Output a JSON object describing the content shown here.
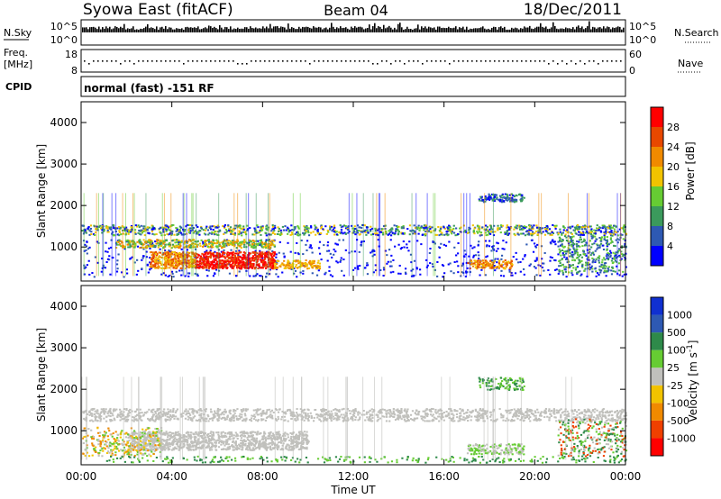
{
  "header": {
    "station": "Syowa East (fitACF)",
    "beam": "Beam 04",
    "date": "18/Dec/2011"
  },
  "top_panel": {
    "left_label": "N.Sky",
    "left_ticks": [
      "10^5",
      "10^0"
    ],
    "right_label": "N.Search",
    "right_ticks": [
      "10^5",
      "10^0"
    ]
  },
  "freq_panel": {
    "left_label_1": "Freq.",
    "left_label_2": "[MHz]",
    "left_ticks": [
      "18",
      "8"
    ],
    "right_label": "Nave",
    "right_ticks": [
      "60",
      "0"
    ]
  },
  "cpid_panel": {
    "label": "CPID",
    "mode_text": "normal (fast) -151 RF"
  },
  "colors": {
    "power_scale": [
      "#0000ff",
      "#2e59b3",
      "#3b9a5c",
      "#66cc33",
      "#f2c300",
      "#f08a00",
      "#e84800",
      "#ff0000"
    ],
    "velocity_scale": [
      "#ff0000",
      "#f04000",
      "#f08a00",
      "#f2c300",
      "#c0c0bc",
      "#66cc33",
      "#2e8a4a",
      "#2e59b3",
      "#1030d0"
    ],
    "ground_scatter": "#c0c0bc"
  },
  "chart_data": [
    {
      "type": "heatmap",
      "title": "Power",
      "xlabel": "",
      "ylabel": "Slant Range [km]",
      "x_ticks": [
        "00:00",
        "04:00",
        "08:00",
        "12:00",
        "16:00",
        "20:00",
        "00:00"
      ],
      "y_ticks": [
        "1000",
        "2000",
        "3000",
        "4000"
      ],
      "ylim": [
        180,
        4500
      ],
      "colorbar": {
        "label": "Power [dB]",
        "ticks": [
          "4",
          "8",
          "12",
          "16",
          "20",
          "24",
          "28"
        ],
        "range": [
          0,
          32
        ]
      },
      "features": [
        {
          "range_km": [
            1300,
            1550
          ],
          "time_h": [
            0,
            24
          ],
          "level": "mixed"
        },
        {
          "range_km": [
            500,
            900
          ],
          "time_h": [
            3,
            8.5
          ],
          "level": "high"
        },
        {
          "range_km": [
            1000,
            1200
          ],
          "time_h": [
            1.5,
            8.5
          ],
          "level": "medium"
        },
        {
          "range_km": [
            2100,
            2300
          ],
          "time_h": [
            17.5,
            19.5
          ],
          "level": "low"
        }
      ]
    },
    {
      "type": "heatmap",
      "title": "Velocity",
      "xlabel": "Time UT",
      "ylabel": "Slant Range [km]",
      "x_ticks": [
        "00:00",
        "04:00",
        "08:00",
        "12:00",
        "16:00",
        "20:00",
        "00:00"
      ],
      "y_ticks": [
        "1000",
        "2000",
        "3000",
        "4000"
      ],
      "ylim": [
        180,
        4500
      ],
      "colorbar": {
        "label": "Velocity [m s^-1]",
        "ticks": [
          "1000",
          "500",
          "100",
          "25",
          "-25",
          "-100",
          "-500",
          "-1000"
        ]
      }
    }
  ]
}
